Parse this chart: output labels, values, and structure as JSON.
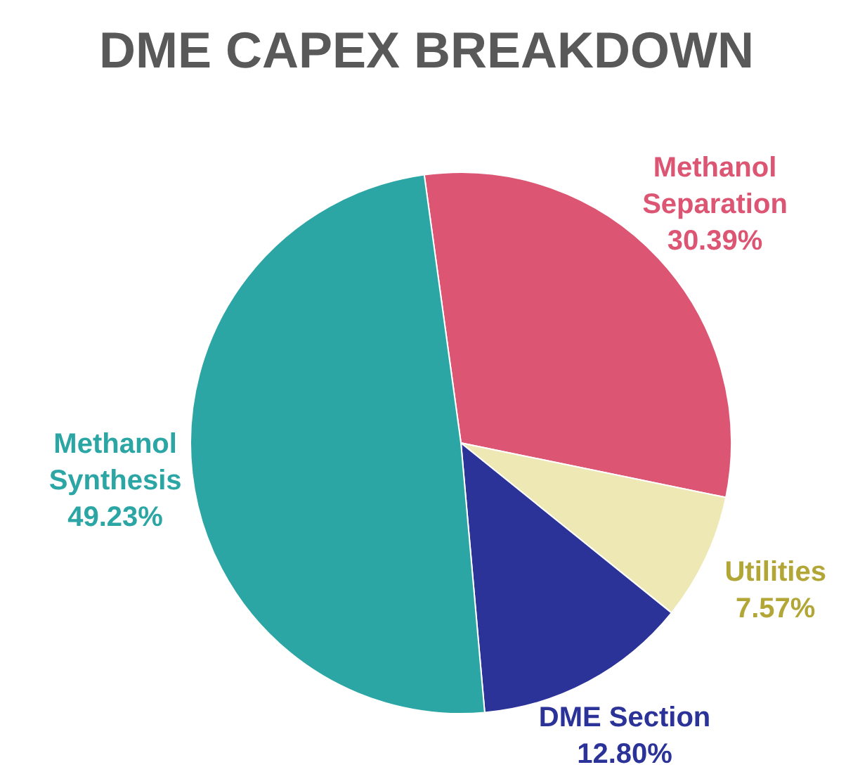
{
  "chart_data": {
    "type": "pie",
    "title": "DME CAPEX BREAKDOWN",
    "categories": [
      "Methanol Separation",
      "Utilities",
      "DME Section",
      "Methanol Synthesis"
    ],
    "values": [
      30.39,
      7.57,
      12.8,
      49.23
    ],
    "value_labels": [
      "30.39%",
      "7.57%",
      "12.80%",
      "49.23%"
    ],
    "colors": [
      "#dc5573",
      "#ede8b4",
      "#2b3399",
      "#2ba6a5"
    ],
    "legend": false
  }
}
